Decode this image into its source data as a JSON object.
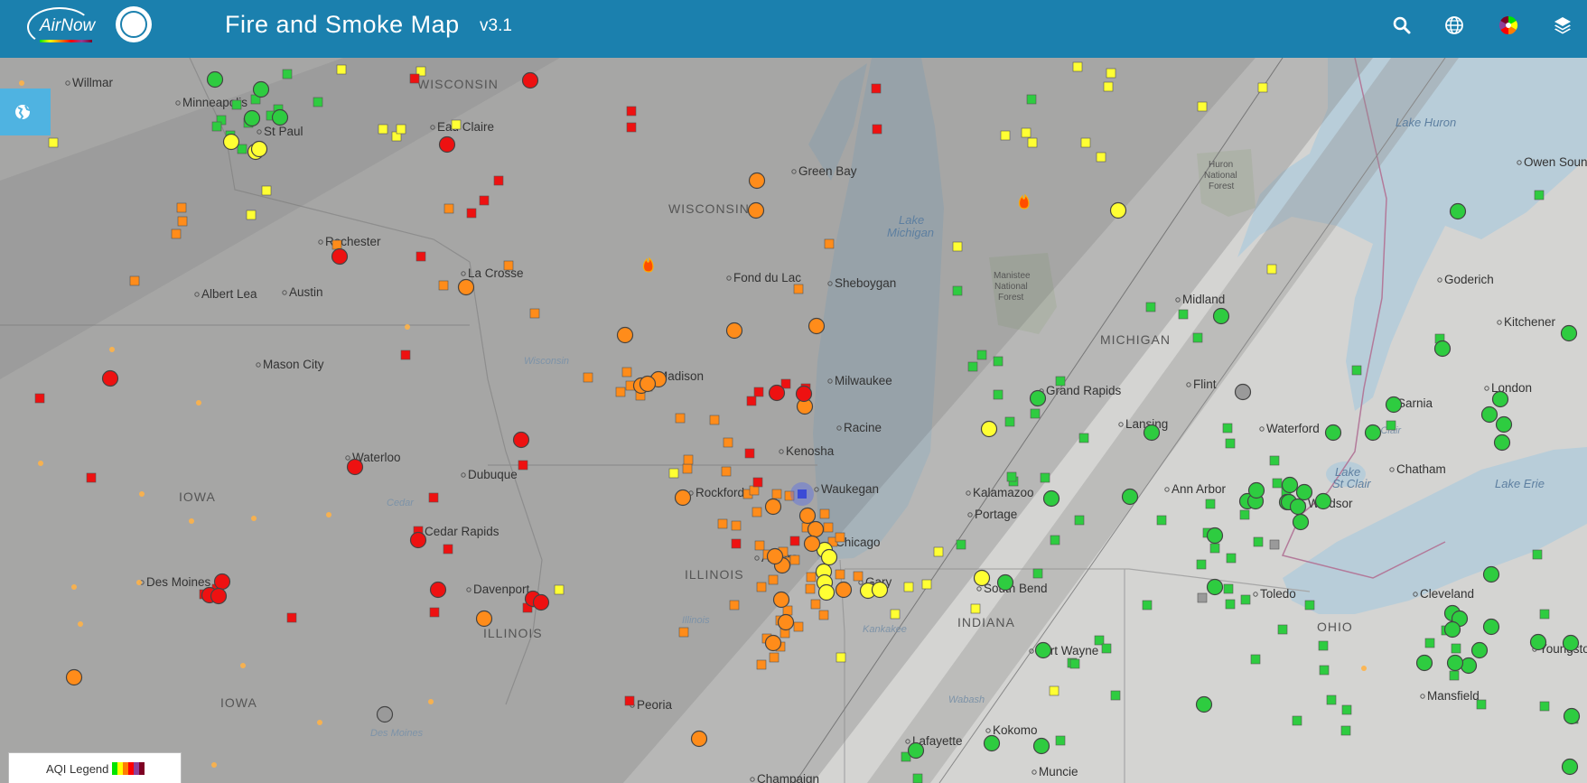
{
  "header": {
    "logo_text": "AirNow",
    "title": "Fire and Smoke Map",
    "version": "v3.1",
    "background": "#1b80ae",
    "icons": [
      "search-icon",
      "globe-icon",
      "aqi-color-wheel-icon",
      "layers-icon"
    ]
  },
  "map_button": {
    "icon": "globe-icon"
  },
  "legend": {
    "label": "AQI Legend",
    "colors": [
      "#00e400",
      "#ffff00",
      "#ff7e00",
      "#ff0000",
      "#8f3f97",
      "#7e0023"
    ]
  },
  "aqi_colors": {
    "good": "#2ecc40",
    "moderate": "#ffff33",
    "usg": "#ff8c1a",
    "unhealthy": "#ee1111",
    "unavailable": "#9a9a9a"
  },
  "map": {
    "states": [
      "WISCONSIN",
      "WISCONSIN",
      "MICHIGAN",
      "IOWA",
      "IOWA",
      "ILLINOIS",
      "ILLINOIS",
      "INDIANA",
      "OHIO"
    ],
    "water": [
      "Lake Michigan",
      "Lake Huron",
      "Lake Erie",
      "Lake St Clair"
    ],
    "forests": [
      "Huron National Forest",
      "Manistee National Forest"
    ],
    "rivers": [
      "Wisconsin",
      "Cedar",
      "Illinois",
      "Des Moines",
      "Kankakee",
      "Wabash",
      "St Clair"
    ],
    "cities": [
      "Willmar",
      "Minneapolis",
      "St Paul",
      "Eau Claire",
      "Green Bay",
      "Rochester",
      "La Crosse",
      "Albert Lea",
      "Austin",
      "Fond du Lac",
      "Sheboygan",
      "Mason City",
      "Madison",
      "Milwaukee",
      "Racine",
      "Kenosha",
      "Waukegan",
      "Waterloo",
      "Dubuque",
      "Rockford",
      "Cedar Rapids",
      "Chicago",
      "Aurora",
      "Des Moines",
      "Davenport",
      "Gary",
      "Peoria",
      "Lafayette",
      "Kokomo",
      "Muncie",
      "Fort Wayne",
      "South Bend",
      "Portage",
      "Kalamazoo",
      "Grand Rapids",
      "Lansing",
      "Midland",
      "Flint",
      "Waterford",
      "Ann Arbor",
      "Windsor",
      "Toledo",
      "Chatham",
      "London",
      "Sarnia",
      "Goderich",
      "Kitchener",
      "Owen Sound",
      "Cleveland",
      "Youngstown",
      "Mansfield",
      "Champaign"
    ]
  }
}
